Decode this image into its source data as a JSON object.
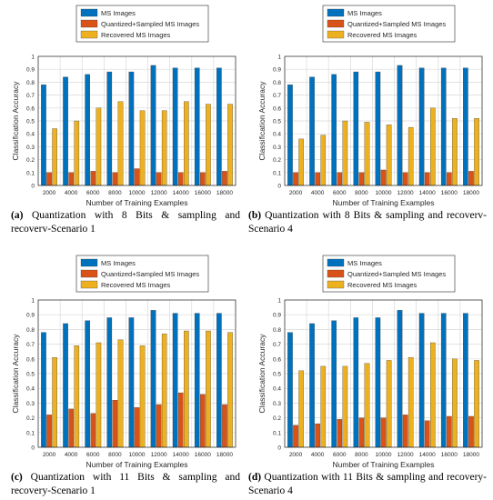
{
  "colors": {
    "ms": "#0072BD",
    "qs": "#D95319",
    "rec": "#EDB120"
  },
  "legend_labels": [
    "MS Images",
    "Quantized+Sampled MS Images",
    "Recovered MS Images"
  ],
  "charts": [
    {
      "chart_data": {
        "type": "bar",
        "categories": [
          "2000",
          "4000",
          "6000",
          "8000",
          "10000",
          "12000",
          "14000",
          "16000",
          "18000"
        ],
        "series": [
          {
            "name": "MS Images",
            "values": [
              0.78,
              0.84,
              0.86,
              0.88,
              0.88,
              0.93,
              0.91,
              0.91,
              0.91
            ]
          },
          {
            "name": "Quantized+Sampled MS Images",
            "values": [
              0.1,
              0.1,
              0.11,
              0.1,
              0.13,
              0.1,
              0.1,
              0.1,
              0.11
            ]
          },
          {
            "name": "Recovered MS Images",
            "values": [
              0.44,
              0.5,
              0.6,
              0.65,
              0.58,
              0.58,
              0.65,
              0.63,
              0.63
            ]
          }
        ],
        "xlabel": "Number of Training Examples",
        "ylabel": "Classification Accuracy",
        "ylim": [
          0,
          1
        ],
        "yticks": [
          "0",
          "0.1",
          "0.2",
          "0.3",
          "0.4",
          "0.5",
          "0.6",
          "0.7",
          "0.8",
          "0.9",
          "1"
        ],
        "grid": true,
        "legend": "top-center"
      },
      "caption_label": "(a)",
      "caption_text": "Quantization with 8 Bits & sampling and recoverv-Scenario 1"
    },
    {
      "chart_data": {
        "type": "bar",
        "categories": [
          "2000",
          "4000",
          "6000",
          "8000",
          "10000",
          "12000",
          "14000",
          "16000",
          "18000"
        ],
        "series": [
          {
            "name": "MS Images",
            "values": [
              0.78,
              0.84,
              0.86,
              0.88,
              0.88,
              0.93,
              0.91,
              0.91,
              0.91
            ]
          },
          {
            "name": "Quantized+Sampled MS Images",
            "values": [
              0.1,
              0.1,
              0.1,
              0.1,
              0.12,
              0.1,
              0.1,
              0.1,
              0.11
            ]
          },
          {
            "name": "Recovered MS Images",
            "values": [
              0.36,
              0.39,
              0.5,
              0.49,
              0.47,
              0.45,
              0.6,
              0.52,
              0.52
            ]
          }
        ],
        "xlabel": "Number of Training Examples",
        "ylabel": "Classification Accuracy",
        "ylim": [
          0,
          1
        ],
        "yticks": [
          "0",
          "0.1",
          "0.2",
          "0.3",
          "0.4",
          "0.5",
          "0.6",
          "0.7",
          "0.8",
          "0.9",
          "1"
        ],
        "grid": true,
        "legend": "top-center"
      },
      "caption_label": "(b)",
      "caption_text": "Quantization with 8 Bits & sampling and recoverv-Scenario 4"
    },
    {
      "chart_data": {
        "type": "bar",
        "categories": [
          "2000",
          "4000",
          "6000",
          "8000",
          "10000",
          "12000",
          "14000",
          "16000",
          "18000"
        ],
        "series": [
          {
            "name": "MS Images",
            "values": [
              0.78,
              0.84,
              0.86,
              0.88,
              0.88,
              0.93,
              0.91,
              0.91,
              0.91
            ]
          },
          {
            "name": "Quantized+Sampled MS Images",
            "values": [
              0.22,
              0.26,
              0.23,
              0.32,
              0.27,
              0.29,
              0.37,
              0.36,
              0.29
            ]
          },
          {
            "name": "Recovered MS Images",
            "values": [
              0.61,
              0.69,
              0.71,
              0.73,
              0.69,
              0.77,
              0.79,
              0.79,
              0.78
            ]
          }
        ],
        "xlabel": "Number of Training Examples",
        "ylabel": "Classification Accuracy",
        "ylim": [
          0,
          1
        ],
        "yticks": [
          "0",
          "0.1",
          "0.2",
          "0.3",
          "0.4",
          "0.5",
          "0.6",
          "0.7",
          "0.8",
          "0.9",
          "1"
        ],
        "grid": true,
        "legend": "top-center"
      },
      "caption_label": "(c)",
      "caption_text": "Quantization with 11 Bits & sampling and recovery-Scenario 1"
    },
    {
      "chart_data": {
        "type": "bar",
        "categories": [
          "2000",
          "4000",
          "6000",
          "8000",
          "10000",
          "12000",
          "14000",
          "16000",
          "18000"
        ],
        "series": [
          {
            "name": "MS Images",
            "values": [
              0.78,
              0.84,
              0.86,
              0.88,
              0.88,
              0.93,
              0.91,
              0.91,
              0.91
            ]
          },
          {
            "name": "Quantized+Sampled MS Images",
            "values": [
              0.15,
              0.16,
              0.19,
              0.2,
              0.2,
              0.22,
              0.18,
              0.21,
              0.21
            ]
          },
          {
            "name": "Recovered MS Images",
            "values": [
              0.52,
              0.55,
              0.55,
              0.57,
              0.59,
              0.61,
              0.71,
              0.6,
              0.59
            ]
          }
        ],
        "xlabel": "Number of Training Examples",
        "ylabel": "Classification Accuracy",
        "ylim": [
          0,
          1
        ],
        "yticks": [
          "0",
          "0.1",
          "0.2",
          "0.3",
          "0.4",
          "0.5",
          "0.6",
          "0.7",
          "0.8",
          "0.9",
          "1"
        ],
        "grid": true,
        "legend": "top-center"
      },
      "caption_label": "(d)",
      "caption_text": "Quantization with 11 Bits & sampling and recovery-Scenario 4"
    }
  ]
}
